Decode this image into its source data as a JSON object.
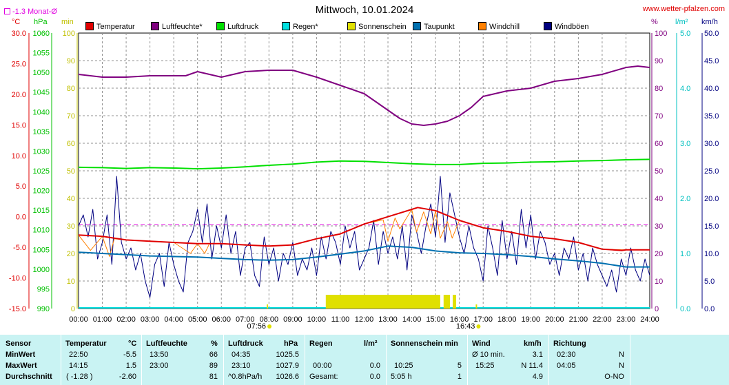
{
  "header": {
    "title": "Mittwoch, 10.01.2024",
    "site": "www.wetter-pfalzen.com",
    "monat_label": "-1.3 Monat-Ø"
  },
  "units": {
    "temp": "°C",
    "pressure": "hPa",
    "sun": "min",
    "humidity": "%",
    "rain": "l/m²",
    "wind": "km/h"
  },
  "legend": [
    {
      "label": "Temperatur",
      "color": "#e00000"
    },
    {
      "label": "Luftfeuchte*",
      "color": "#800080"
    },
    {
      "label": "Luftdruck",
      "color": "#00e000"
    },
    {
      "label": "Regen*",
      "color": "#00e0e0"
    },
    {
      "label": "Sonnenschein",
      "color": "#e0e000"
    },
    {
      "label": "Taupunkt",
      "color": "#0070b0"
    },
    {
      "label": "Windchill",
      "color": "#ff8000"
    },
    {
      "label": "Windböen",
      "color": "#000080"
    }
  ],
  "chart_data": {
    "type": "line",
    "title": "Mittwoch, 10.01.2024",
    "x_labels": [
      "00:00",
      "01:00",
      "02:00",
      "03:00",
      "04:00",
      "05:00",
      "06:00",
      "07:00",
      "08:00",
      "09:00",
      "10:00",
      "11:00",
      "12:00",
      "13:00",
      "14:00",
      "15:00",
      "16:00",
      "17:00",
      "18:00",
      "19:00",
      "20:00",
      "21:00",
      "22:00",
      "23:00",
      "24:00"
    ],
    "xlim": [
      0,
      24
    ],
    "sunrise": "07:56",
    "sunset": "16:43",
    "axes": {
      "temp": {
        "unit": "°C",
        "ylim": [
          -15,
          30
        ],
        "ticks": [
          "30.0",
          "25.0",
          "20.0",
          "15.0",
          "10.0",
          "5.0",
          "0.0",
          "-5.0",
          "-10.0",
          "-15.0"
        ]
      },
      "pressure": {
        "unit": "hPa",
        "ylim": [
          990,
          1060
        ],
        "ticks": [
          "1060",
          "1055",
          "1050",
          "1045",
          "1040",
          "1035",
          "1030",
          "1025",
          "1020",
          "1015",
          "1010",
          "1005",
          "1000",
          "995",
          "990"
        ]
      },
      "sun": {
        "unit": "min",
        "ylim": [
          0,
          100
        ],
        "ticks": [
          "100",
          "90",
          "80",
          "70",
          "60",
          "50",
          "40",
          "30",
          "20",
          "10",
          "0"
        ]
      },
      "humidity": {
        "unit": "%",
        "ylim": [
          0,
          100
        ],
        "ticks": [
          "100",
          "90",
          "80",
          "70",
          "60",
          "50",
          "40",
          "30",
          "20",
          "10",
          "0"
        ]
      },
      "rain": {
        "unit": "l/m²",
        "ylim": [
          0,
          5
        ],
        "ticks": [
          "5.0",
          "4.0",
          "3.0",
          "2.0",
          "1.0",
          "0.0"
        ]
      },
      "wind": {
        "unit": "km/h",
        "ylim": [
          0,
          50
        ],
        "ticks": [
          "50.0",
          "45.0",
          "40.0",
          "35.0",
          "30.0",
          "25.0",
          "20.0",
          "15.0",
          "10.0",
          "5.0",
          "0.0"
        ]
      }
    },
    "monat_avg_temp": -1.3,
    "series": [
      {
        "name": "Temperatur",
        "axis": "temp",
        "color": "#e00000",
        "x": [
          0,
          1,
          2,
          3,
          4,
          5,
          6,
          7,
          8,
          9,
          10,
          11,
          12,
          13,
          14,
          14.25,
          15,
          16,
          17,
          18,
          19,
          20,
          21,
          22,
          22.83,
          23,
          24
        ],
        "y": [
          -3.0,
          -3.2,
          -3.8,
          -4.0,
          -4.2,
          -4.4,
          -4.4,
          -4.6,
          -4.8,
          -4.6,
          -3.6,
          -2.8,
          -1.2,
          0.0,
          1.2,
          1.5,
          1.0,
          -0.6,
          -1.8,
          -2.4,
          -3.2,
          -3.6,
          -4.2,
          -5.3,
          -5.5,
          -5.4,
          -5.4
        ]
      },
      {
        "name": "Luftfeuchte*",
        "axis": "humidity",
        "color": "#800080",
        "x": [
          0,
          1,
          2,
          3,
          3.5,
          4,
          4.5,
          5,
          5.5,
          6,
          7,
          8,
          9,
          10,
          11,
          12,
          12.5,
          13,
          13.5,
          14,
          14.5,
          15,
          15.5,
          16,
          16.5,
          17,
          18,
          19,
          20,
          21,
          22,
          23,
          23.5,
          24
        ],
        "y": [
          85,
          84,
          84,
          84.5,
          84.5,
          84.5,
          84.5,
          86,
          85,
          84,
          86,
          86.5,
          86.5,
          84,
          81,
          78,
          75,
          72,
          69,
          67,
          66.5,
          67,
          68,
          70,
          73,
          77,
          79,
          80,
          82.5,
          83.5,
          85,
          87.5,
          88,
          87.5
        ]
      },
      {
        "name": "Luftdruck",
        "axis": "pressure",
        "color": "#00e000",
        "x": [
          0,
          1,
          2,
          3,
          4,
          5,
          6,
          7,
          8,
          9,
          10,
          11,
          12,
          13,
          14,
          15,
          16,
          17,
          18,
          19,
          20,
          21,
          22,
          23,
          24
        ],
        "y": [
          1025.9,
          1025.8,
          1025.6,
          1025.8,
          1025.7,
          1025.5,
          1025.7,
          1026.0,
          1026.4,
          1026.7,
          1027.2,
          1027.5,
          1027.4,
          1027.1,
          1026.8,
          1026.6,
          1026.6,
          1026.9,
          1027.0,
          1027.2,
          1027.3,
          1027.5,
          1027.6,
          1027.8,
          1027.9
        ]
      },
      {
        "name": "Taupunkt",
        "axis": "temp",
        "color": "#0070b0",
        "x": [
          0,
          1,
          2,
          3,
          4,
          5,
          6,
          7,
          8,
          9,
          10,
          11,
          12,
          13,
          14,
          15,
          16,
          17,
          18,
          19,
          20,
          21,
          22,
          23,
          24
        ],
        "y": [
          -5.8,
          -6.0,
          -6.2,
          -6.4,
          -6.5,
          -6.6,
          -6.8,
          -7.0,
          -7.1,
          -7.0,
          -6.6,
          -6.1,
          -5.6,
          -4.8,
          -5.0,
          -5.6,
          -5.9,
          -6.0,
          -6.2,
          -6.5,
          -6.9,
          -7.2,
          -7.6,
          -8.2,
          -8.2
        ]
      },
      {
        "name": "Windchill",
        "axis": "temp",
        "color": "#ff8000",
        "x": [
          0,
          0.5,
          1,
          1.3,
          1.5,
          2,
          3,
          4,
          4.7,
          5,
          5.3,
          5.5,
          6,
          7,
          8,
          9,
          10,
          11,
          12,
          12.8,
          13,
          13.3,
          13.5,
          14,
          14.2,
          14.5,
          14.8,
          15,
          15.2,
          15.5,
          15.7,
          16,
          17,
          18,
          19,
          20,
          21,
          22,
          23,
          24
        ],
        "y": [
          -3.0,
          -5.5,
          -3.2,
          -6.5,
          -3.6,
          -3.8,
          -4.0,
          -4.2,
          -6.0,
          -4.4,
          -6.0,
          -4.4,
          -4.4,
          -4.6,
          -4.8,
          -4.6,
          -3.6,
          -2.8,
          -1.2,
          -0.5,
          -4.0,
          -0.2,
          -2.0,
          1.2,
          -2.5,
          0.8,
          -2.8,
          1.0,
          -3.5,
          -0.8,
          -3.5,
          -0.6,
          -1.8,
          -2.4,
          -3.2,
          -3.6,
          -4.2,
          -5.3,
          -5.4,
          -5.4
        ]
      },
      {
        "name": "Windböen",
        "axis": "wind",
        "color": "#000080",
        "x": [
          0,
          0.2,
          0.4,
          0.6,
          0.8,
          1.0,
          1.2,
          1.4,
          1.6,
          1.8,
          2.0,
          2.2,
          2.4,
          2.6,
          2.8,
          3.0,
          3.2,
          3.4,
          3.6,
          3.8,
          4.0,
          4.2,
          4.4,
          4.6,
          4.8,
          5.0,
          5.2,
          5.4,
          5.6,
          5.8,
          6.0,
          6.2,
          6.4,
          6.6,
          6.8,
          7.0,
          7.2,
          7.4,
          7.6,
          7.8,
          8.0,
          8.2,
          8.4,
          8.6,
          8.8,
          9.0,
          9.2,
          9.4,
          9.6,
          9.8,
          10.0,
          10.2,
          10.4,
          10.6,
          10.8,
          11.0,
          11.2,
          11.4,
          11.6,
          11.8,
          12.0,
          12.2,
          12.4,
          12.6,
          12.8,
          13.0,
          13.2,
          13.4,
          13.6,
          13.8,
          14.0,
          14.2,
          14.4,
          14.6,
          14.8,
          15.0,
          15.2,
          15.4,
          15.6,
          15.8,
          16.0,
          16.2,
          16.4,
          16.6,
          16.8,
          17.0,
          17.2,
          17.4,
          17.6,
          17.8,
          18.0,
          18.2,
          18.4,
          18.6,
          18.8,
          19.0,
          19.2,
          19.4,
          19.6,
          19.8,
          20.0,
          20.2,
          20.4,
          20.6,
          20.8,
          21.0,
          21.2,
          21.4,
          21.6,
          21.8,
          22.0,
          22.2,
          22.4,
          22.6,
          22.8,
          23.0,
          23.2,
          23.4,
          23.6,
          23.8,
          24.0
        ],
        "y": [
          15,
          17,
          13,
          18,
          9,
          12,
          17,
          8,
          24,
          12,
          9,
          11,
          7,
          10,
          5,
          2,
          8,
          10,
          4,
          12,
          8,
          5,
          3,
          12,
          14,
          18,
          12,
          19,
          9,
          15,
          11,
          17,
          10,
          14,
          6,
          11,
          12,
          6,
          4,
          13,
          8,
          11,
          5,
          10,
          8,
          12,
          6,
          9,
          7,
          11,
          6,
          13,
          9,
          14,
          12,
          8,
          15,
          11,
          14,
          7,
          9,
          11,
          16,
          8,
          14,
          10,
          13,
          9,
          15,
          7,
          17,
          14,
          10,
          15,
          19,
          13,
          24,
          12,
          21,
          17,
          13,
          10,
          15,
          11,
          9,
          5,
          15,
          11,
          6,
          16,
          9,
          14,
          8,
          18,
          11,
          17,
          9,
          14,
          12,
          8,
          10,
          6,
          11,
          9,
          13,
          7,
          10,
          5,
          11,
          8,
          6,
          4,
          7,
          3,
          9,
          6,
          11,
          7,
          5,
          9,
          6
        ]
      }
    ],
    "rain": {
      "name": "Regen*",
      "axis": "rain",
      "color": "#00e0e0",
      "total": 0.0
    },
    "sunshine_periods": [
      {
        "start": "10:25",
        "end": "15:10",
        "color": "#e0e000"
      },
      {
        "start": "15:22",
        "end": "15:35",
        "color": "#e0e000"
      },
      {
        "start": "15:45",
        "end": "15:52",
        "color": "#e0e000"
      }
    ]
  },
  "table": {
    "headers": {
      "sensor": "Sensor",
      "temperatur": "Temperatur",
      "temp_unit": "°C",
      "luftfeuchte": "Luftfeuchte",
      "hum_unit": "%",
      "luftdruck": "Luftdruck",
      "press_unit": "hPa",
      "regen": "Regen",
      "rain_unit": "l/m²",
      "sonnenschein": "Sonnenschein min",
      "wind": "Wind",
      "wind_unit": "km/h",
      "richtung": "Richtung"
    },
    "rows": [
      {
        "label": "MinWert",
        "temp_time": "22:50",
        "temp_val": "-5.5",
        "hum_time": "13:50",
        "hum_val": "66",
        "press_time": "04:35",
        "press_val": "1025.5",
        "rain_time": "",
        "rain_val": "",
        "sun_time": "",
        "sun_val": "",
        "wind_time": "Ø 10 min.",
        "wind_val": "3.1",
        "dir_time": "02:30",
        "dir_val": "N"
      },
      {
        "label": "MaxWert",
        "temp_time": "14:15",
        "temp_val": "1.5",
        "hum_time": "23:00",
        "hum_val": "89",
        "press_time": "23:10",
        "press_val": "1027.9",
        "rain_time": "00:00",
        "rain_val": "0.0",
        "sun_time": "10:25",
        "sun_val": "5",
        "wind_time": "15:25",
        "wind_val": "N 11.4",
        "dir_time": "04:05",
        "dir_val": "N"
      },
      {
        "label": "Durchschnitt",
        "temp_time": "( -1.28 )",
        "temp_val": "-2.60",
        "hum_time": "",
        "hum_val": "81",
        "press_time": "^0.8hPa/h",
        "press_val": "1026.6",
        "rain_time": "Gesamt:",
        "rain_val": "0.0",
        "sun_time": "5:05 h",
        "sun_val": "1",
        "wind_time": "",
        "wind_val": "4.9",
        "dir_time": "",
        "dir_val": "O-NO"
      }
    ]
  }
}
